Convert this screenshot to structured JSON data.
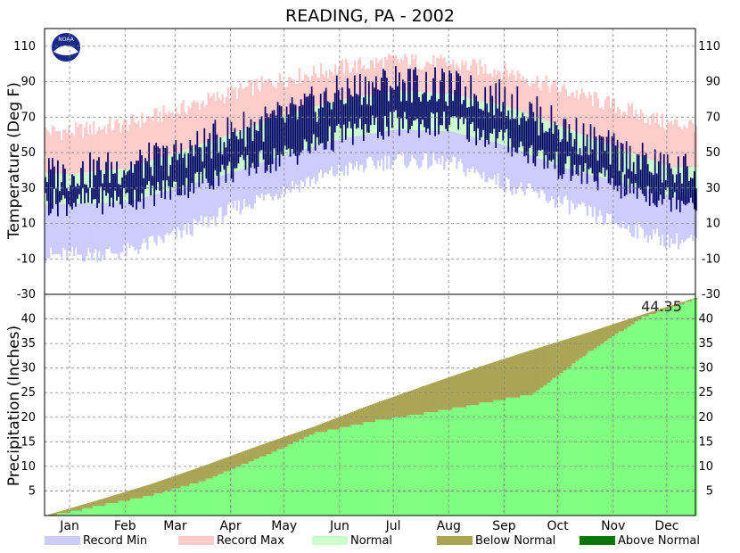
{
  "chart_data": [
    {
      "type": "bar",
      "title": "READING, PA - 2002",
      "ylabel": "Temperature (Deg F)",
      "ylim": [
        -30,
        120
      ],
      "yticks": [
        -30,
        -10,
        10,
        30,
        50,
        70,
        90,
        110
      ],
      "months": [
        "Jan",
        "Feb",
        "Mar",
        "Apr",
        "May",
        "Jun",
        "Jul",
        "Aug",
        "Sep",
        "Oct",
        "Nov",
        "Dec"
      ],
      "grid": true,
      "series": [
        {
          "name": "Record Max",
          "color": "#ffcccc",
          "monthly_mid": [
            62,
            66,
            74,
            84,
            92,
            98,
            102,
            100,
            96,
            86,
            76,
            66
          ]
        },
        {
          "name": "Normal",
          "color": "#ccffcc",
          "monthly_mid_high": [
            38,
            41,
            50,
            61,
            72,
            80,
            85,
            83,
            76,
            65,
            53,
            42
          ],
          "monthly_mid_low": [
            21,
            22,
            30,
            39,
            49,
            58,
            63,
            62,
            54,
            42,
            34,
            25
          ]
        },
        {
          "name": "Record Min",
          "color": "#ccccff",
          "monthly_mid": [
            -8,
            -6,
            4,
            18,
            30,
            40,
            46,
            44,
            32,
            22,
            10,
            0
          ]
        }
      ],
      "observed": {
        "color": "#000066",
        "monthly_mid_high": [
          38,
          42,
          48,
          62,
          70,
          84,
          90,
          86,
          80,
          64,
          50,
          40
        ],
        "monthly_mid_low": [
          22,
          24,
          30,
          40,
          48,
          60,
          66,
          66,
          56,
          42,
          32,
          24
        ]
      }
    },
    {
      "type": "area",
      "ylabel": "Precipitation (Inches)",
      "ylim": [
        0,
        45
      ],
      "yticks": [
        5,
        10,
        15,
        20,
        25,
        30,
        35,
        40
      ],
      "annotation": "44.35",
      "x_day": [
        1,
        32,
        60,
        91,
        121,
        152,
        182,
        213,
        244,
        274,
        305,
        335,
        365
      ],
      "normal_cumulative": [
        0,
        3.3,
        6.4,
        10.3,
        14.3,
        18.2,
        22.4,
        26.4,
        30.3,
        33.8,
        37.3,
        40.9,
        44.35
      ],
      "observed_cumulative": [
        0,
        2.3,
        4.3,
        7.5,
        12.0,
        17.0,
        19.3,
        21.0,
        23.0,
        25.0,
        33.5,
        40.6,
        44.35
      ],
      "grid": true
    }
  ],
  "legend": [
    {
      "label": "Record Min",
      "color": "#ccccff"
    },
    {
      "label": "Record Max",
      "color": "#ffcccc"
    },
    {
      "label": "Normal",
      "color": "#ccffcc"
    },
    {
      "label": "Below Normal",
      "color": "#aaa555"
    },
    {
      "label": "Above Normal",
      "color": "#007700"
    }
  ],
  "colors": {
    "precip_fill": "#80ff80",
    "below": "#aaa555",
    "above": "#007700",
    "observed": "#000066"
  },
  "logo": {
    "text": "NOAA"
  }
}
